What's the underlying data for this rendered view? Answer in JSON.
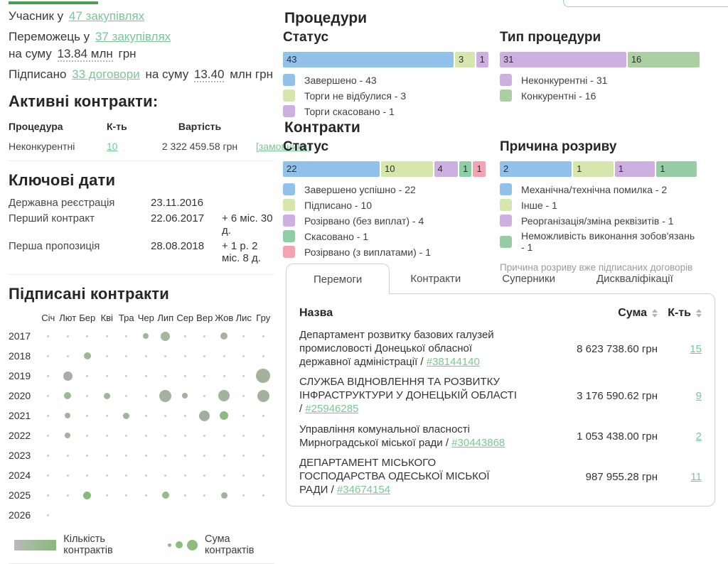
{
  "summary": {
    "participant_prefix": "Учасник у",
    "participant_link": "47 закупівлях",
    "winner_prefix": "Переможець у",
    "winner_link": "37 закупівлях",
    "winner_sum_prefix": "на суму",
    "winner_sum_value": "13.84 млн",
    "winner_sum_suffix": "грн",
    "signed_prefix": "Підписано",
    "signed_link": "33 договори",
    "signed_mid": "на суму",
    "signed_sum_value": "13.40",
    "signed_sum_suffix": "млн грн"
  },
  "active_contracts": {
    "title": "Активні контракти:",
    "columns": [
      "Процедура",
      "К-ть",
      "Вартість"
    ],
    "rows": [
      {
        "procedure": "Неконкурентні",
        "count": "10",
        "value": "2 322 459.58 грн",
        "link": "[замовники]"
      }
    ]
  },
  "key_dates": {
    "title": "Ключові дати",
    "rows": [
      {
        "label": "Державна реєстрація",
        "date": "23.11.2016",
        "delta": ""
      },
      {
        "label": "Перший контракт",
        "date": "22.06.2017",
        "delta": "+ 6 міс. 30 д."
      },
      {
        "label": "Перша пропозиція",
        "date": "28.08.2018",
        "delta": "+ 1 р. 2 міс. 8 д."
      }
    ]
  },
  "procedures_title": "Процедури",
  "contracts_title": "Контракти",
  "chart_data": [
    {
      "id": "signed-contracts-bubbles",
      "type": "scatter",
      "title": "Підписані контракти",
      "x_labels": [
        "Січ",
        "Лют",
        "Бер",
        "Кві",
        "Тра",
        "Чер",
        "Лип",
        "Сер",
        "Вер",
        "Жов",
        "Лис",
        "Гру"
      ],
      "y_labels": [
        "2017",
        "2018",
        "2019",
        "2020",
        "2021",
        "2022",
        "2023",
        "2024",
        "2025",
        "2026"
      ],
      "bubbles": [
        {
          "year": "2017",
          "month": "Чер",
          "size": 8,
          "color": "#9db697"
        },
        {
          "year": "2017",
          "month": "Лип",
          "size": 13,
          "color": "#a2b79b"
        },
        {
          "year": "2017",
          "month": "Жов",
          "size": 10,
          "color": "#a7b2a2"
        },
        {
          "year": "2018",
          "month": "Бер",
          "size": 10,
          "color": "#9db697"
        },
        {
          "year": "2019",
          "month": "Лют",
          "size": 13,
          "color": "#a5b1a0"
        },
        {
          "year": "2019",
          "month": "Гру",
          "size": 20,
          "color": "#a2b29b"
        },
        {
          "year": "2020",
          "month": "Лют",
          "size": 10,
          "color": "#9cb996"
        },
        {
          "year": "2020",
          "month": "Кві",
          "size": 9,
          "color": "#a0b59a"
        },
        {
          "year": "2020",
          "month": "Лип",
          "size": 17,
          "color": "#a4b19e"
        },
        {
          "year": "2020",
          "month": "Сер",
          "size": 8,
          "color": "#a4b19e"
        },
        {
          "year": "2020",
          "month": "Жов",
          "size": 16,
          "color": "#9eb59a"
        },
        {
          "year": "2020",
          "month": "Гру",
          "size": 17,
          "color": "#a2b29d"
        },
        {
          "year": "2021",
          "month": "Лют",
          "size": 8,
          "color": "#a4b19e"
        },
        {
          "year": "2021",
          "month": "Тра",
          "size": 9,
          "color": "#9fb59b"
        },
        {
          "year": "2021",
          "month": "Вер",
          "size": 15,
          "color": "#a2af9d"
        },
        {
          "year": "2021",
          "month": "Жов",
          "size": 12,
          "color": "#8cbb80"
        },
        {
          "year": "2022",
          "month": "Лют",
          "size": 8,
          "color": "#a4b19e"
        },
        {
          "year": "2025",
          "month": "Бер",
          "size": 11,
          "color": "#87bb7a"
        },
        {
          "year": "2025",
          "month": "Лип",
          "size": 10,
          "color": "#94bb89"
        },
        {
          "year": "2025",
          "month": "Жов",
          "size": 9,
          "color": "#a8aea4"
        }
      ],
      "default_dot": {
        "size": 3,
        "color": "#cbcbcb"
      },
      "sparse_rows": {
        "2026": [
          "Січ"
        ]
      },
      "legend": {
        "gradient_from": "#b7bbb6",
        "gradient_to": "#8bb87d",
        "gradient_label": "Кількість контрактів",
        "dot_sizes": [
          5,
          10,
          15
        ],
        "dot_color": "#8bbd7c",
        "bubble_label": "Сума контрактів"
      }
    },
    {
      "id": "procedures-status",
      "type": "bar",
      "subtitle": "Статус",
      "segments": [
        {
          "label": "Завершено",
          "value": 43,
          "color": "#92c1e9"
        },
        {
          "label": "Торги не відбулися",
          "value": 3,
          "color": "#d6e7ae"
        },
        {
          "label": "Торги скасовано",
          "value": 1,
          "color": "#cdb0df"
        }
      ]
    },
    {
      "id": "procedures-type",
      "type": "bar",
      "subtitle": "Тип процедури",
      "segments": [
        {
          "label": "Неконкурентні",
          "value": 31,
          "color": "#cdb0df"
        },
        {
          "label": "Конкурентні",
          "value": 16,
          "color": "#abcfa3"
        }
      ]
    },
    {
      "id": "contracts-status",
      "type": "bar",
      "subtitle": "Статус",
      "segments": [
        {
          "label": "Завершено успішно",
          "value": 22,
          "color": "#92c1e9"
        },
        {
          "label": "Підписано",
          "value": 10,
          "color": "#d6e7ae"
        },
        {
          "label": "Розірвано (без виплат)",
          "value": 4,
          "color": "#cdb0df"
        },
        {
          "label": "Скасовано",
          "value": 1,
          "color": "#90cfa6"
        },
        {
          "label": "Розірвано (з виплатами)",
          "value": 1,
          "color": "#f3a4b2"
        }
      ]
    },
    {
      "id": "termination-reason",
      "type": "bar",
      "subtitle": "Причина розриву",
      "segments": [
        {
          "label": "Механічна/технічна помилка",
          "value": 2,
          "color": "#92c1e9"
        },
        {
          "label": "Інше",
          "value": 1,
          "color": "#d6e7ae"
        },
        {
          "label": "Реорганізація/зміна реквізитів",
          "value": 1,
          "color": "#cdb0df"
        },
        {
          "label": "Неможливість виконання зобов'язань",
          "value": 1,
          "color": "#97cda4"
        }
      ],
      "note": "Причина розриву вже підписаних договорів"
    }
  ],
  "winners_table": {
    "tabs": [
      {
        "label": "Перемоги",
        "active": true
      },
      {
        "label": "Контракти",
        "active": false
      },
      {
        "label": "Суперники",
        "active": false
      },
      {
        "label": "Дискваліфікації",
        "active": false
      }
    ],
    "columns": {
      "name": "Назва",
      "sum": "Сума",
      "count": "К-ть"
    },
    "rows": [
      {
        "name": "Департамент розвитку базових галузей промисловості Донецької обласної державної адміністрації / ",
        "link": "#38144140",
        "sum": "8 623 738.60 грн",
        "count": "15"
      },
      {
        "name": "СЛУЖБА ВІДНОВЛЕННЯ ТА РОЗВИТКУ ІНФРАСТРУКТУРИ У ДОНЕЦЬКІЙ ОБЛАСТІ / ",
        "link": "#25946285",
        "sum": "3 176 590.62 грн",
        "count": "9"
      },
      {
        "name": "Управління комунальної власності Мирноградської міської ради / ",
        "link": "#30443868",
        "sum": "1 053 438.00 грн",
        "count": "2"
      },
      {
        "name": "ДЕПАРТАМЕНТ МІСЬКОГО ГОСПОДАРСТВА ОДЕСЬКОЇ МІСЬКОЇ РАДИ / ",
        "link": "#34674154",
        "sum": "987 955.28 грн",
        "count": "11"
      }
    ]
  },
  "colors": {
    "accent_green": "#79c795",
    "tab_indicator": "#4a9e50"
  }
}
